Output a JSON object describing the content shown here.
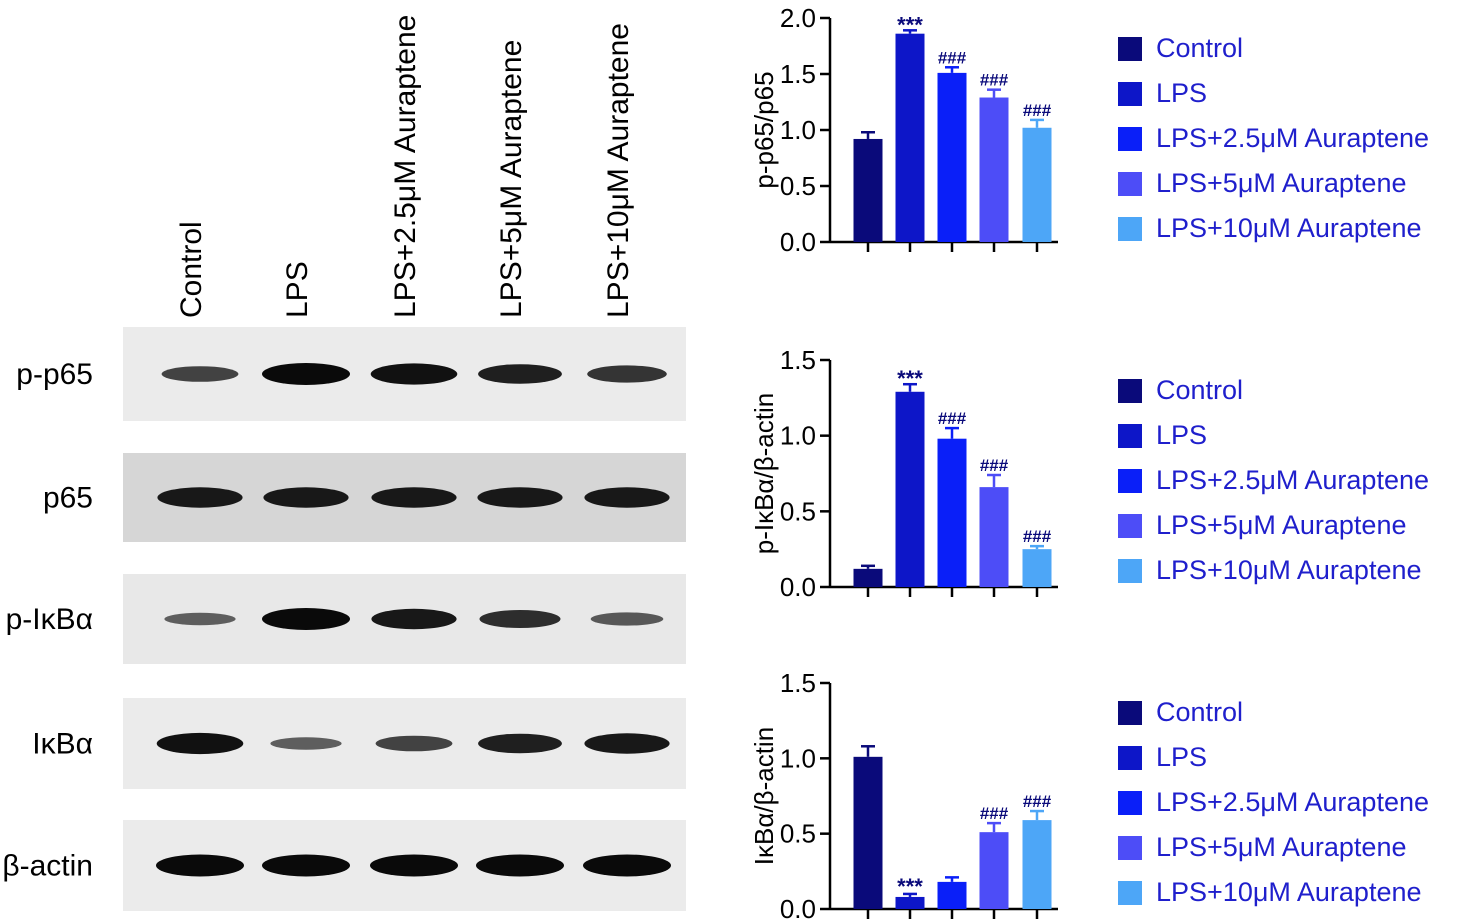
{
  "groups": [
    "Control",
    "LPS",
    "LPS+2.5μM Auraptene",
    "LPS+5μM Auraptene",
    "LPS+10μM Auraptene"
  ],
  "colors": [
    "#0a0a7a",
    "#0d16c8",
    "#0a1ff8",
    "#4d4df7",
    "#4da6f7"
  ],
  "western_blot": {
    "lane_labels": [
      "Control",
      "LPS",
      "LPS+2.5μM Auraptene",
      "LPS+5μM Auraptene",
      "LPS+10μM Auraptene"
    ],
    "rows": [
      {
        "label": "p-p65",
        "intensity": [
          0.6,
          1.0,
          0.95,
          0.85,
          0.7
        ]
      },
      {
        "label": "p65",
        "intensity": [
          0.9,
          0.9,
          0.9,
          0.9,
          0.9
        ]
      },
      {
        "label": "p-IκBα",
        "intensity": [
          0.4,
          1.0,
          0.9,
          0.75,
          0.45
        ]
      },
      {
        "label": "IκBα",
        "intensity": [
          0.95,
          0.4,
          0.6,
          0.85,
          0.9
        ]
      },
      {
        "label": "β-actin",
        "intensity": [
          1.0,
          1.0,
          1.0,
          1.0,
          1.0
        ]
      }
    ]
  },
  "chart_data": [
    {
      "type": "bar",
      "ylabel": "p-p65/p65",
      "ylim": [
        0,
        2.0
      ],
      "yticks": [
        "0.0",
        "0.5",
        "1.0",
        "1.5",
        "2.0"
      ],
      "categories": [
        "Control",
        "LPS",
        "LPS+2.5μM Auraptene",
        "LPS+5μM Auraptene",
        "LPS+10μM Auraptene"
      ],
      "values": [
        0.92,
        1.86,
        1.51,
        1.29,
        1.02
      ],
      "errors": [
        0.06,
        0.03,
        0.05,
        0.07,
        0.07
      ],
      "annotations": [
        "",
        "***",
        "###",
        "###",
        "###"
      ]
    },
    {
      "type": "bar",
      "ylabel": "p-IκBα/β-actin",
      "ylim": [
        0,
        1.5
      ],
      "yticks": [
        "0.0",
        "0.5",
        "1.0",
        "1.5"
      ],
      "categories": [
        "Control",
        "LPS",
        "LPS+2.5μM Auraptene",
        "LPS+5μM Auraptene",
        "LPS+10μM Auraptene"
      ],
      "values": [
        0.12,
        1.29,
        0.98,
        0.66,
        0.25
      ],
      "errors": [
        0.02,
        0.05,
        0.07,
        0.08,
        0.02
      ],
      "annotations": [
        "",
        "***",
        "###",
        "###",
        "###"
      ]
    },
    {
      "type": "bar",
      "ylabel": "IκBα/β-actin",
      "ylim": [
        0,
        1.5
      ],
      "yticks": [
        "0.0",
        "0.5",
        "1.0",
        "1.5"
      ],
      "categories": [
        "Control",
        "LPS",
        "LPS+2.5μM Auraptene",
        "LPS+5μM Auraptene",
        "LPS+10μM Auraptene"
      ],
      "values": [
        1.01,
        0.08,
        0.18,
        0.51,
        0.59
      ],
      "errors": [
        0.07,
        0.02,
        0.03,
        0.06,
        0.06
      ],
      "annotations": [
        "",
        "***",
        "",
        "###",
        "###"
      ]
    }
  ]
}
